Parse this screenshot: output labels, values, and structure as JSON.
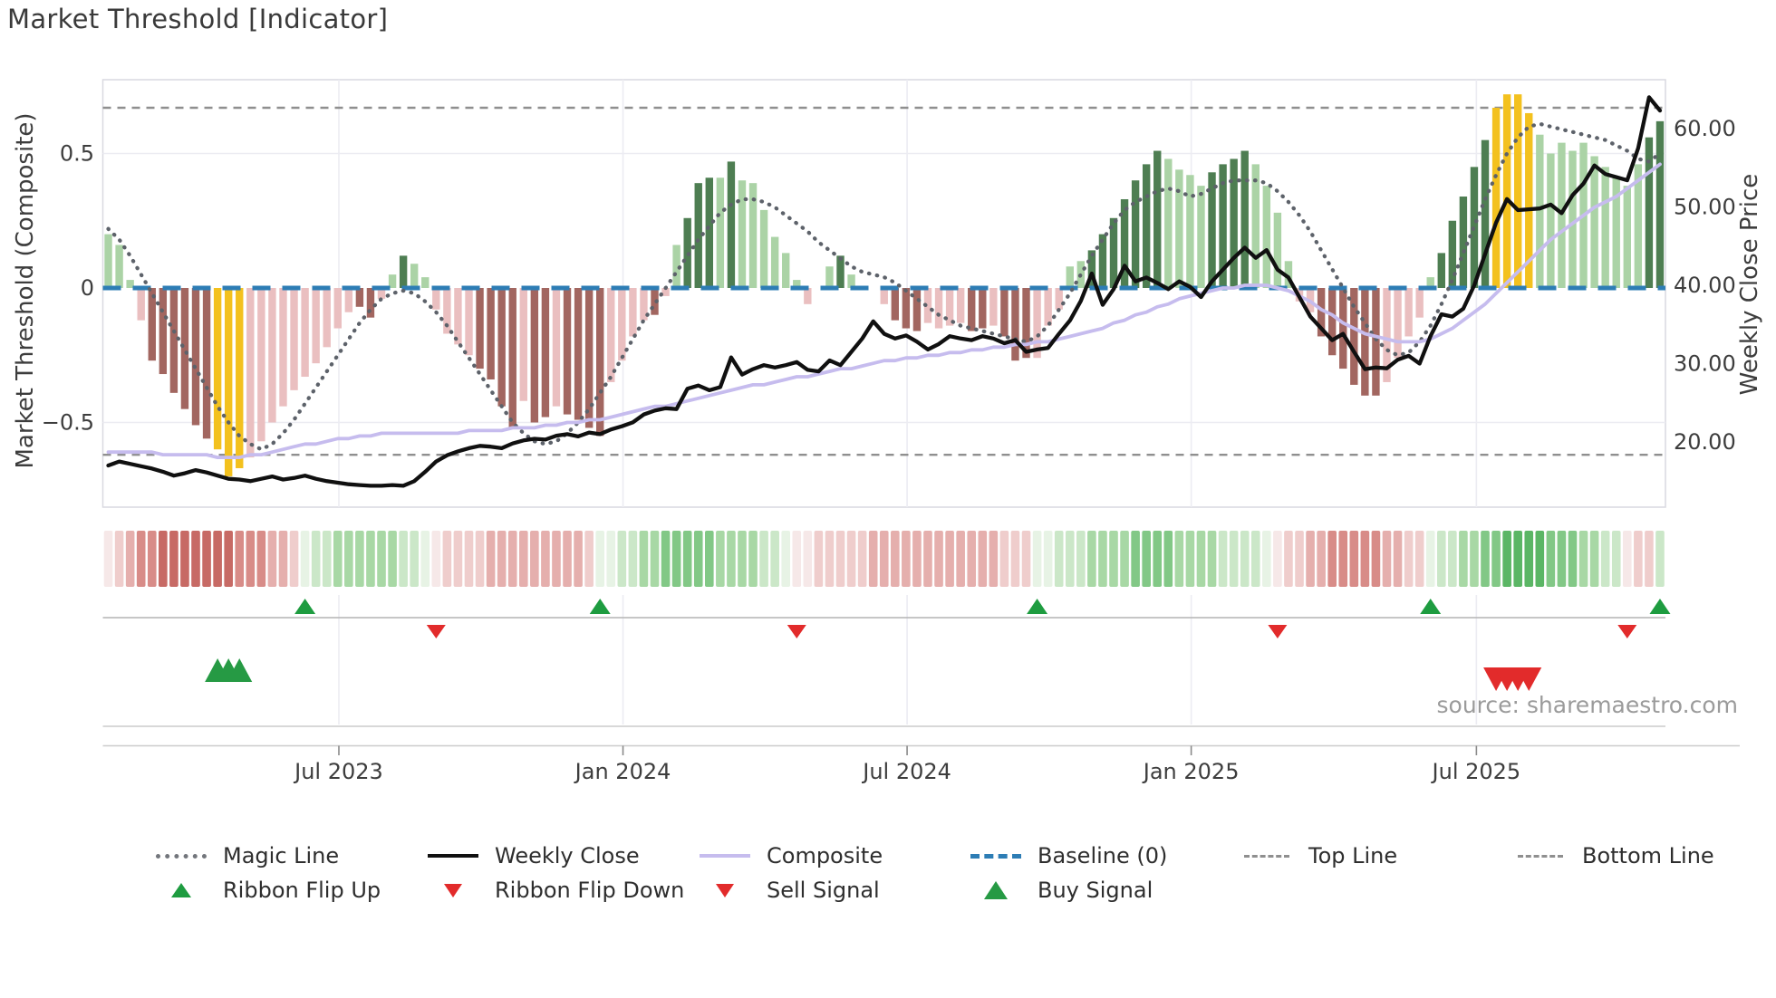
{
  "title": "Market Threshold [Indicator]",
  "source_text": "source: sharemaestro.com",
  "axes": {
    "left_label": "Market Threshold (Composite)",
    "right_label": "Weekly Close Price"
  },
  "colors": {
    "bar_strong_up": "#4e7e52",
    "bar_weak_up": "#abd3a6",
    "bar_signal_yellow": "#f3c11e",
    "bar_weak_down": "#eabfc0",
    "bar_strong_down": "#a26660",
    "magic_line": "#5d626a",
    "weekly_close": "#101010",
    "composite": "#c6bcee",
    "baseline": "#2d7db5",
    "threshold_lines": "#8f8f8f",
    "grid": "#ececf2",
    "spine": "#d9d9e0",
    "flip_up": "#1e9c40",
    "flip_down": "#e22b2b",
    "buy": "#269a44",
    "sell": "#e22b2b",
    "ribbon_red": [
      "#f6e8e8",
      "#efcdcc",
      "#e5afad",
      "#d88c88",
      "#c76a65"
    ],
    "ribbon_green": [
      "#e7f3e5",
      "#cbe7c8",
      "#a8d8a5",
      "#82c886",
      "#5bb665"
    ]
  },
  "legend": {
    "items": [
      {
        "label": "Magic Line",
        "swatch": "dotted-gray"
      },
      {
        "label": "Weekly Close",
        "swatch": "solid-black"
      },
      {
        "label": "Composite",
        "swatch": "solid-lavender"
      },
      {
        "label": "Baseline (0)",
        "swatch": "dashed-blue"
      },
      {
        "label": "Top Line",
        "swatch": "dashed-gray"
      },
      {
        "label": "Bottom Line",
        "swatch": "dashed-gray"
      },
      {
        "label": "Ribbon Flip Up",
        "swatch": "triangle-up-green"
      },
      {
        "label": "Ribbon Flip Down",
        "swatch": "triangle-down-red"
      },
      {
        "label": "Sell Signal",
        "swatch": "triangle-down-red"
      },
      {
        "label": "Buy Signal",
        "swatch": "triangle-up-green-large"
      }
    ]
  },
  "chart_data": {
    "type": "combo",
    "title": "Market Threshold [Indicator]",
    "weeks": 143,
    "x_ticks": [
      {
        "label": "Jul 2023",
        "week": 21.1
      },
      {
        "label": "Jan 2024",
        "week": 47.1
      },
      {
        "label": "Jul 2024",
        "week": 73.1
      },
      {
        "label": "Jan 2025",
        "week": 99.1
      },
      {
        "label": "Jul 2025",
        "week": 125.2
      }
    ],
    "left_axis": {
      "label": "Market Threshold (Composite)",
      "ticks": [
        {
          "label": "0.5",
          "value": 0.5
        },
        {
          "label": "0",
          "value": 0
        },
        {
          "label": "−0.5",
          "value": -0.5
        }
      ],
      "range": [
        -0.815,
        0.775
      ]
    },
    "right_axis": {
      "label": "Weekly Close Price",
      "ticks": [
        {
          "label": "60.00",
          "value": 60
        },
        {
          "label": "50.00",
          "value": 50
        },
        {
          "label": "40.00",
          "value": 40
        },
        {
          "label": "30.00",
          "value": 30
        },
        {
          "label": "20.00",
          "value": 20
        }
      ],
      "range": [
        11.7,
        66.2
      ]
    },
    "baseline": 0,
    "top_line": 0.67,
    "bottom_line": -0.62,
    "bars": [
      [
        0.2,
        "lg"
      ],
      [
        0.16,
        "lg"
      ],
      [
        0.03,
        "lg"
      ],
      [
        -0.12,
        "lp"
      ],
      [
        -0.27,
        "dr"
      ],
      [
        -0.32,
        "dr"
      ],
      [
        -0.39,
        "dr"
      ],
      [
        -0.45,
        "dr"
      ],
      [
        -0.51,
        "dr"
      ],
      [
        -0.56,
        "dr"
      ],
      [
        -0.6,
        "y"
      ],
      [
        -0.7,
        "y"
      ],
      [
        -0.67,
        "y"
      ],
      [
        -0.63,
        "lp"
      ],
      [
        -0.57,
        "lp"
      ],
      [
        -0.5,
        "lp"
      ],
      [
        -0.44,
        "lp"
      ],
      [
        -0.38,
        "lp"
      ],
      [
        -0.33,
        "lp"
      ],
      [
        -0.28,
        "lp"
      ],
      [
        -0.22,
        "lp"
      ],
      [
        -0.15,
        "lp"
      ],
      [
        -0.09,
        "lp"
      ],
      [
        -0.07,
        "dr"
      ],
      [
        -0.11,
        "dr"
      ],
      [
        -0.04,
        "lp"
      ],
      [
        0.05,
        "lg"
      ],
      [
        0.12,
        "dg"
      ],
      [
        0.09,
        "lg"
      ],
      [
        0.04,
        "lg"
      ],
      [
        -0.08,
        "lp"
      ],
      [
        -0.17,
        "lp"
      ],
      [
        -0.21,
        "lp"
      ],
      [
        -0.25,
        "lp"
      ],
      [
        -0.3,
        "dr"
      ],
      [
        -0.34,
        "dr"
      ],
      [
        -0.44,
        "dr"
      ],
      [
        -0.52,
        "dr"
      ],
      [
        -0.42,
        "lp"
      ],
      [
        -0.5,
        "dr"
      ],
      [
        -0.48,
        "dr"
      ],
      [
        -0.44,
        "lp"
      ],
      [
        -0.47,
        "dr"
      ],
      [
        -0.49,
        "dr"
      ],
      [
        -0.52,
        "dr"
      ],
      [
        -0.55,
        "dr"
      ],
      [
        -0.35,
        "lp"
      ],
      [
        -0.27,
        "lp"
      ],
      [
        -0.18,
        "lp"
      ],
      [
        -0.12,
        "lp"
      ],
      [
        -0.1,
        "dr"
      ],
      [
        -0.03,
        "lp"
      ],
      [
        0.16,
        "lg"
      ],
      [
        0.26,
        "dg"
      ],
      [
        0.39,
        "dg"
      ],
      [
        0.41,
        "dg"
      ],
      [
        0.41,
        "lg"
      ],
      [
        0.47,
        "dg"
      ],
      [
        0.4,
        "lg"
      ],
      [
        0.39,
        "lg"
      ],
      [
        0.29,
        "lg"
      ],
      [
        0.19,
        "lg"
      ],
      [
        0.13,
        "lg"
      ],
      [
        0.03,
        "lg"
      ],
      [
        -0.06,
        "lp"
      ],
      [
        0,
        "none"
      ],
      [
        0.08,
        "lg"
      ],
      [
        0.12,
        "dg"
      ],
      [
        0.05,
        "lg"
      ],
      [
        0,
        "none"
      ],
      [
        0,
        "none"
      ],
      [
        -0.06,
        "lp"
      ],
      [
        -0.12,
        "dr"
      ],
      [
        -0.15,
        "dr"
      ],
      [
        -0.16,
        "dr"
      ],
      [
        -0.13,
        "lp"
      ],
      [
        -0.15,
        "lp"
      ],
      [
        -0.14,
        "lp"
      ],
      [
        -0.13,
        "lp"
      ],
      [
        -0.16,
        "dr"
      ],
      [
        -0.15,
        "dr"
      ],
      [
        -0.14,
        "lp"
      ],
      [
        -0.18,
        "dr"
      ],
      [
        -0.27,
        "dr"
      ],
      [
        -0.26,
        "dr"
      ],
      [
        -0.26,
        "lp"
      ],
      [
        -0.14,
        "lp"
      ],
      [
        -0.08,
        "lp"
      ],
      [
        0.08,
        "lg"
      ],
      [
        0.1,
        "lg"
      ],
      [
        0.14,
        "dg"
      ],
      [
        0.2,
        "dg"
      ],
      [
        0.26,
        "dg"
      ],
      [
        0.33,
        "dg"
      ],
      [
        0.4,
        "dg"
      ],
      [
        0.46,
        "dg"
      ],
      [
        0.51,
        "dg"
      ],
      [
        0.48,
        "lg"
      ],
      [
        0.44,
        "lg"
      ],
      [
        0.42,
        "lg"
      ],
      [
        0.38,
        "lg"
      ],
      [
        0.43,
        "dg"
      ],
      [
        0.46,
        "dg"
      ],
      [
        0.48,
        "dg"
      ],
      [
        0.51,
        "dg"
      ],
      [
        0.46,
        "lg"
      ],
      [
        0.38,
        "lg"
      ],
      [
        0.28,
        "lg"
      ],
      [
        0.1,
        "lg"
      ],
      [
        -0.05,
        "lp"
      ],
      [
        -0.09,
        "lp"
      ],
      [
        -0.18,
        "dr"
      ],
      [
        -0.25,
        "dr"
      ],
      [
        -0.3,
        "dr"
      ],
      [
        -0.36,
        "dr"
      ],
      [
        -0.4,
        "dr"
      ],
      [
        -0.4,
        "dr"
      ],
      [
        -0.35,
        "lp"
      ],
      [
        -0.26,
        "lp"
      ],
      [
        -0.18,
        "lp"
      ],
      [
        -0.11,
        "lp"
      ],
      [
        0.04,
        "lg"
      ],
      [
        0.13,
        "dg"
      ],
      [
        0.25,
        "dg"
      ],
      [
        0.34,
        "dg"
      ],
      [
        0.45,
        "dg"
      ],
      [
        0.55,
        "dg"
      ],
      [
        0.67,
        "y"
      ],
      [
        0.72,
        "y"
      ],
      [
        0.72,
        "y"
      ],
      [
        0.65,
        "y"
      ],
      [
        0.57,
        "lg"
      ],
      [
        0.5,
        "lg"
      ],
      [
        0.54,
        "lg"
      ],
      [
        0.51,
        "lg"
      ],
      [
        0.54,
        "lg"
      ],
      [
        0.49,
        "lg"
      ],
      [
        0.45,
        "lg"
      ],
      [
        0.41,
        "lg"
      ],
      [
        0.38,
        "lg"
      ],
      [
        0.46,
        "lg"
      ],
      [
        0.56,
        "dg"
      ],
      [
        0.62,
        "dg"
      ]
    ],
    "magic_line": [
      0.22,
      0.18,
      0.12,
      0.05,
      -0.02,
      -0.09,
      -0.16,
      -0.23,
      -0.3,
      -0.37,
      -0.44,
      -0.5,
      -0.55,
      -0.58,
      -0.6,
      -0.58,
      -0.54,
      -0.49,
      -0.43,
      -0.37,
      -0.31,
      -0.25,
      -0.19,
      -0.13,
      -0.08,
      -0.04,
      -0.02,
      -0.01,
      -0.02,
      -0.05,
      -0.09,
      -0.14,
      -0.2,
      -0.26,
      -0.32,
      -0.38,
      -0.44,
      -0.5,
      -0.54,
      -0.57,
      -0.58,
      -0.57,
      -0.54,
      -0.5,
      -0.45,
      -0.39,
      -0.33,
      -0.26,
      -0.19,
      -0.12,
      -0.06,
      0.0,
      0.06,
      0.12,
      0.18,
      0.23,
      0.28,
      0.31,
      0.33,
      0.33,
      0.32,
      0.3,
      0.27,
      0.24,
      0.21,
      0.17,
      0.14,
      0.11,
      0.08,
      0.06,
      0.05,
      0.04,
      0.02,
      -0.01,
      -0.04,
      -0.07,
      -0.1,
      -0.12,
      -0.14,
      -0.15,
      -0.16,
      -0.17,
      -0.18,
      -0.19,
      -0.2,
      -0.18,
      -0.14,
      -0.08,
      -0.02,
      0.05,
      0.12,
      0.18,
      0.24,
      0.29,
      0.32,
      0.34,
      0.36,
      0.37,
      0.36,
      0.34,
      0.35,
      0.37,
      0.39,
      0.4,
      0.4,
      0.4,
      0.39,
      0.36,
      0.32,
      0.27,
      0.21,
      0.14,
      0.07,
      0.0,
      -0.07,
      -0.13,
      -0.19,
      -0.23,
      -0.25,
      -0.24,
      -0.2,
      -0.14,
      -0.06,
      0.03,
      0.13,
      0.23,
      0.33,
      0.42,
      0.5,
      0.56,
      0.6,
      0.61,
      0.6,
      0.59,
      0.58,
      0.57,
      0.56,
      0.55,
      0.53,
      0.51,
      0.48,
      0.47,
      0.5
    ],
    "composite": [
      -0.61,
      -0.61,
      -0.61,
      -0.61,
      -0.61,
      -0.62,
      -0.62,
      -0.62,
      -0.62,
      -0.62,
      -0.63,
      -0.63,
      -0.63,
      -0.62,
      -0.62,
      -0.61,
      -0.6,
      -0.59,
      -0.58,
      -0.58,
      -0.57,
      -0.56,
      -0.56,
      -0.55,
      -0.55,
      -0.54,
      -0.54,
      -0.54,
      -0.54,
      -0.54,
      -0.54,
      -0.54,
      -0.54,
      -0.53,
      -0.53,
      -0.53,
      -0.53,
      -0.52,
      -0.52,
      -0.52,
      -0.51,
      -0.51,
      -0.5,
      -0.5,
      -0.49,
      -0.49,
      -0.48,
      -0.47,
      -0.46,
      -0.45,
      -0.44,
      -0.44,
      -0.43,
      -0.42,
      -0.41,
      -0.4,
      -0.39,
      -0.38,
      -0.37,
      -0.36,
      -0.36,
      -0.35,
      -0.34,
      -0.33,
      -0.33,
      -0.32,
      -0.31,
      -0.3,
      -0.3,
      -0.29,
      -0.28,
      -0.27,
      -0.27,
      -0.26,
      -0.26,
      -0.25,
      -0.25,
      -0.24,
      -0.24,
      -0.23,
      -0.23,
      -0.22,
      -0.22,
      -0.21,
      -0.21,
      -0.2,
      -0.2,
      -0.19,
      -0.18,
      -0.17,
      -0.16,
      -0.15,
      -0.13,
      -0.12,
      -0.1,
      -0.09,
      -0.07,
      -0.06,
      -0.04,
      -0.03,
      -0.02,
      -0.01,
      0.0,
      0.0,
      0.01,
      0.01,
      0.01,
      0.0,
      -0.01,
      -0.03,
      -0.05,
      -0.08,
      -0.1,
      -0.13,
      -0.15,
      -0.17,
      -0.18,
      -0.19,
      -0.2,
      -0.2,
      -0.2,
      -0.19,
      -0.17,
      -0.15,
      -0.12,
      -0.09,
      -0.06,
      -0.02,
      0.02,
      0.06,
      0.1,
      0.14,
      0.18,
      0.21,
      0.24,
      0.27,
      0.3,
      0.32,
      0.34,
      0.37,
      0.4,
      0.43,
      0.46
    ],
    "weekly_close": [
      17.0,
      17.5,
      17.2,
      16.9,
      16.6,
      16.2,
      15.7,
      16.0,
      16.4,
      16.1,
      15.7,
      15.3,
      15.2,
      15.0,
      15.3,
      15.6,
      15.2,
      15.4,
      15.7,
      15.3,
      15.0,
      14.8,
      14.6,
      14.5,
      14.4,
      14.4,
      14.5,
      14.4,
      15.0,
      16.2,
      17.5,
      18.3,
      18.8,
      19.2,
      19.5,
      19.4,
      19.2,
      19.8,
      20.2,
      20.4,
      20.3,
      20.8,
      21.0,
      20.7,
      21.2,
      21.0,
      21.6,
      22.0,
      22.5,
      23.5,
      24.0,
      24.3,
      24.2,
      26.8,
      27.2,
      26.6,
      27.0,
      30.8,
      28.6,
      29.3,
      29.8,
      29.5,
      29.8,
      30.2,
      29.2,
      29.0,
      30.4,
      29.8,
      31.5,
      33.2,
      35.4,
      33.8,
      33.2,
      33.6,
      32.8,
      31.8,
      32.5,
      33.5,
      33.2,
      33.0,
      33.5,
      33.2,
      32.6,
      33.0,
      31.5,
      31.8,
      32.0,
      33.8,
      35.5,
      38.0,
      41.5,
      37.5,
      39.5,
      42.5,
      40.5,
      41.0,
      40.3,
      39.5,
      40.5,
      39.8,
      38.5,
      40.5,
      42.0,
      43.5,
      44.8,
      43.5,
      44.5,
      42.0,
      41.0,
      38.5,
      36.0,
      34.5,
      33.0,
      33.8,
      31.5,
      29.3,
      29.5,
      29.4,
      30.5,
      31.0,
      30.0,
      33.5,
      36.3,
      36.0,
      37.0,
      40.0,
      44.0,
      48.0,
      51.0,
      49.6,
      49.7,
      49.8,
      50.3,
      49.2,
      51.5,
      53.0,
      55.3,
      54.2,
      53.8,
      53.4,
      57.5,
      64.0,
      62.3
    ],
    "ribbon": [
      -1,
      -2,
      -3,
      -4,
      -4,
      -5,
      -5,
      -5,
      -5,
      -5,
      -5,
      -5,
      -4,
      -4,
      -4,
      -3,
      -3,
      -2,
      1,
      2,
      2,
      3,
      3,
      3,
      3,
      3,
      3,
      2,
      2,
      1,
      -1,
      -2,
      -2,
      -2,
      -2,
      -3,
      -3,
      -3,
      -3,
      -3,
      -3,
      -3,
      -3,
      -3,
      -2,
      1,
      1,
      2,
      2,
      3,
      3,
      4,
      4,
      4,
      4,
      4,
      3,
      3,
      3,
      3,
      2,
      2,
      1,
      -1,
      -1,
      -2,
      -2,
      -2,
      -2,
      -2,
      -3,
      -3,
      -3,
      -3,
      -3,
      -3,
      -3,
      -3,
      -3,
      -3,
      -3,
      -3,
      -2,
      -2,
      -2,
      1,
      1,
      2,
      2,
      2,
      3,
      3,
      3,
      3,
      4,
      4,
      4,
      4,
      3,
      3,
      3,
      3,
      2,
      2,
      2,
      2,
      1,
      -1,
      -2,
      -2,
      -3,
      -3,
      -4,
      -4,
      -4,
      -4,
      -4,
      -3,
      -3,
      -2,
      -2,
      1,
      2,
      2,
      3,
      3,
      4,
      4,
      5,
      5,
      5,
      5,
      4,
      4,
      4,
      3,
      3,
      2,
      2,
      -1,
      -2,
      -2,
      2
    ],
    "signals": {
      "ribbon_flip_up_weeks": [
        18,
        45,
        85,
        121,
        142
      ],
      "ribbon_flip_down_weeks": [
        30,
        63,
        107,
        139
      ],
      "buy_signal_weeks": [
        10,
        11,
        12
      ],
      "sell_signal_weeks": [
        127,
        128,
        129,
        130
      ]
    },
    "grid": true,
    "legend_position": "bottom"
  }
}
